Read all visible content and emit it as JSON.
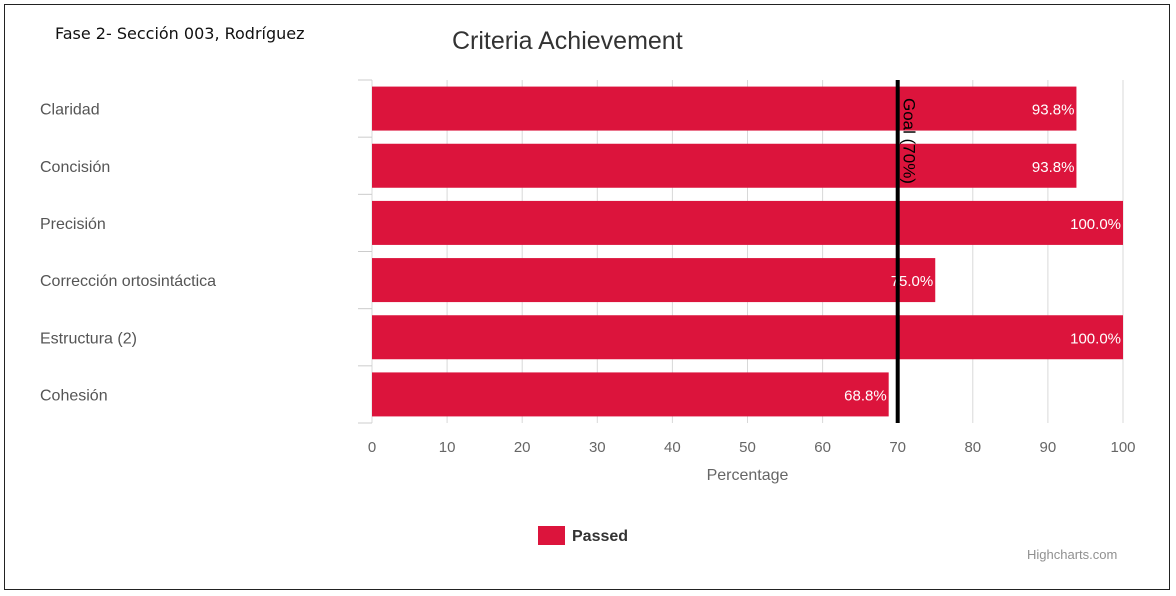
{
  "header": {
    "caption": "Fase 2- Sección 003, Rodríguez"
  },
  "credits": "Highcharts.com",
  "colors": {
    "bar": "#dc143c",
    "grid": "#d8d8d8",
    "goal_line": "#000000"
  },
  "chart_data": {
    "type": "bar",
    "orientation": "horizontal",
    "title": "Criteria Achievement",
    "xlabel": "Percentage",
    "ylabel": "",
    "categories": [
      "Claridad",
      "Concisión",
      "Precisión",
      "Corrección ortosintáctica",
      "Estructura (2)",
      "Cohesión"
    ],
    "series": [
      {
        "name": "Passed",
        "values": [
          93.8,
          93.8,
          100.0,
          75.0,
          100.0,
          68.8
        ],
        "data_labels": [
          "93.8%",
          "93.8%",
          "100.0%",
          "75.0%",
          "100.0%",
          "68.8%"
        ]
      }
    ],
    "xlim": [
      0,
      100
    ],
    "ticks": [
      0,
      10,
      20,
      30,
      40,
      50,
      60,
      70,
      80,
      90,
      100
    ],
    "grid": true,
    "legend": "bottom-center",
    "goal": {
      "value": 70,
      "label": "Goal (70%)"
    }
  }
}
